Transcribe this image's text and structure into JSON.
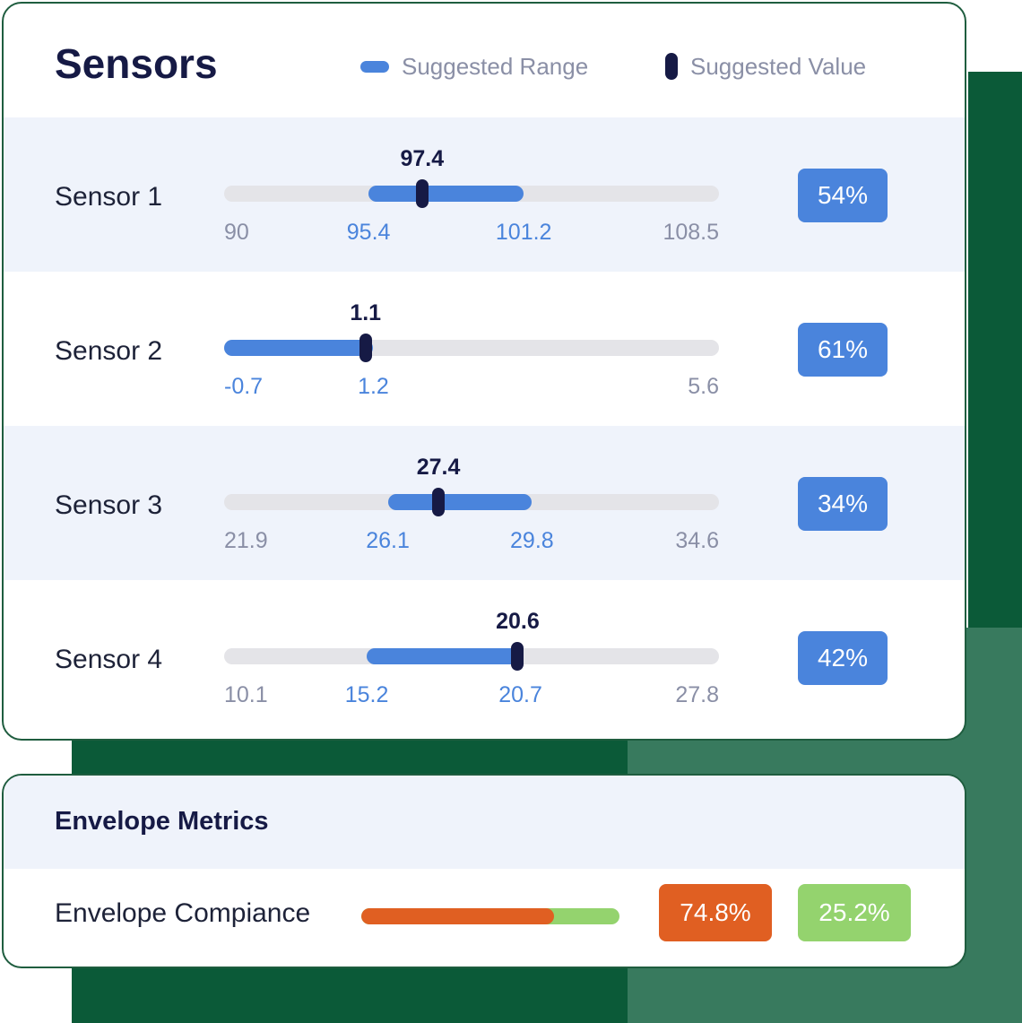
{
  "sensors_panel": {
    "title": "Sensors",
    "legend": {
      "range_label": "Suggested Range",
      "value_label": "Suggested Value"
    },
    "colors": {
      "range": "#4a84dc",
      "value": "#161a45",
      "track": "#e4e4e8"
    },
    "rows": [
      {
        "label": "Sensor 1",
        "min": 90,
        "max": 108.5,
        "range_low": 95.4,
        "range_high": 101.2,
        "value": 97.4,
        "min_label": "90",
        "max_label": "108.5",
        "range_low_label": "95.4",
        "range_high_label": "101.2",
        "value_label": "97.4",
        "percent": "54%"
      },
      {
        "label": "Sensor 2",
        "min": -0.7,
        "max": 5.6,
        "range_low": -0.7,
        "range_high": 1.2,
        "value": 1.1,
        "min_label": "",
        "max_label": "5.6",
        "range_low_label": "-0.7",
        "range_high_label": "1.2",
        "value_label": "1.1",
        "percent": "61%"
      },
      {
        "label": "Sensor 3",
        "min": 21.9,
        "max": 34.6,
        "range_low": 26.1,
        "range_high": 29.8,
        "value": 27.4,
        "min_label": "21.9",
        "max_label": "34.6",
        "range_low_label": "26.1",
        "range_high_label": "29.8",
        "value_label": "27.4",
        "percent": "34%"
      },
      {
        "label": "Sensor 4",
        "min": 10.1,
        "max": 27.8,
        "range_low": 15.2,
        "range_high": 20.7,
        "value": 20.6,
        "min_label": "10.1",
        "max_label": "27.8",
        "range_low_label": "15.2",
        "range_high_label": "20.7",
        "value_label": "20.6",
        "percent": "42%"
      }
    ]
  },
  "metrics_panel": {
    "title": "Envelope Metrics",
    "compliance": {
      "label": "Envelope Compiance",
      "fraction": 0.748,
      "in_envelope_label": "74.8%",
      "out_envelope_label": "25.2%",
      "colors": {
        "in": "#e05f22",
        "out": "#94d36e"
      }
    }
  }
}
